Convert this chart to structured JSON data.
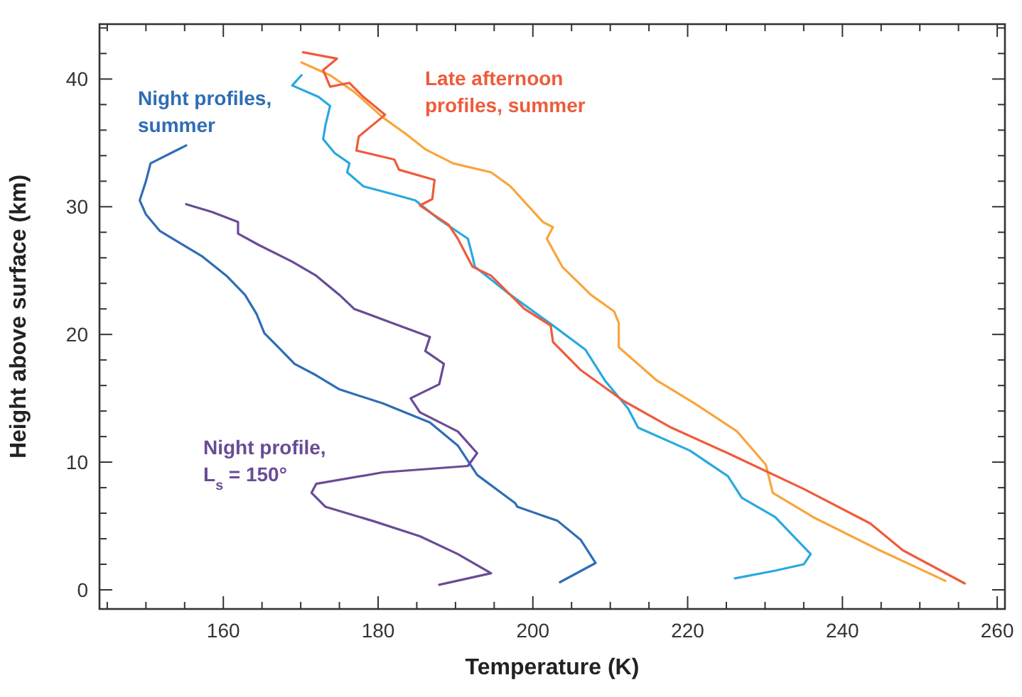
{
  "chart_data": {
    "type": "line",
    "xlabel": "Temperature (K)",
    "ylabel": "Height above surface (km)",
    "xlim": [
      144,
      261
    ],
    "ylim": [
      -1.5,
      44.3
    ],
    "xticks": [
      {
        "value": 145,
        "label": null
      },
      {
        "value": 150,
        "label": null
      },
      {
        "value": 155,
        "label": null
      },
      160,
      {
        "value": 165,
        "label": null
      },
      {
        "value": 170,
        "label": null
      },
      {
        "value": 175,
        "label": null
      },
      180,
      {
        "value": 185,
        "label": null
      },
      {
        "value": 190,
        "label": null
      },
      {
        "value": 195,
        "label": null
      },
      200,
      {
        "value": 205,
        "label": null
      },
      {
        "value": 210,
        "label": null
      },
      {
        "value": 215,
        "label": null
      },
      220,
      {
        "value": 225,
        "label": null
      },
      {
        "value": 230,
        "label": null
      },
      {
        "value": 235,
        "label": null
      },
      240,
      {
        "value": 245,
        "label": null
      },
      {
        "value": 250,
        "label": null
      },
      {
        "value": 255,
        "label": null
      },
      260
    ],
    "yticks": [
      0,
      {
        "value": 2,
        "label": null
      },
      {
        "value": 4,
        "label": null
      },
      {
        "value": 6,
        "label": null
      },
      {
        "value": 8,
        "label": null
      },
      10,
      {
        "value": 12,
        "label": null
      },
      {
        "value": 14,
        "label": null
      },
      {
        "value": 16,
        "label": null
      },
      {
        "value": 18,
        "label": null
      },
      20,
      {
        "value": 22,
        "label": null
      },
      {
        "value": 24,
        "label": null
      },
      {
        "value": 26,
        "label": null
      },
      {
        "value": 28,
        "label": null
      },
      30,
      {
        "value": 32,
        "label": null
      },
      {
        "value": 34,
        "label": null
      },
      {
        "value": 36,
        "label": null
      },
      {
        "value": 38,
        "label": null
      },
      40,
      {
        "value": 42,
        "label": null
      },
      {
        "value": 44,
        "label": null
      }
    ],
    "grid": false,
    "marker": "none",
    "line_style": "solid",
    "series": [
      {
        "name": "Night profiles, summer",
        "color": "#2f6db5",
        "x": [
          155.2,
          150.6,
          150.0,
          149.2,
          150.0,
          151.8,
          157.3,
          160.4,
          162.8,
          164.3,
          165.3,
          167.1,
          169.2,
          172.0,
          175.0,
          180.6,
          186.7,
          190.3,
          192.8,
          197.7,
          198.0,
          203.2,
          206.2,
          208.1,
          203.5
        ],
        "values": [
          34.8,
          33.4,
          32.0,
          30.5,
          29.4,
          28.1,
          26.1,
          24.6,
          23.1,
          21.6,
          20.1,
          19.0,
          17.7,
          16.8,
          15.7,
          14.6,
          13.1,
          11.3,
          9.0,
          6.8,
          6.5,
          5.4,
          3.9,
          2.1,
          0.6
        ]
      },
      {
        "color": "#29a9e1",
        "x": [
          170.1,
          168.9,
          172.3,
          173.8,
          173.2,
          172.9,
          174.4,
          176.3,
          176.0,
          178.1,
          181.8,
          184.8,
          187.9,
          191.6,
          192.2,
          192.5,
          197.1,
          202.6,
          206.8,
          209.3,
          212.3,
          213.6,
          220.3,
          225.2,
          227.0,
          231.3,
          235.9,
          235.0,
          231.3,
          226.1
        ],
        "values": [
          40.3,
          39.5,
          38.6,
          37.9,
          36.4,
          35.3,
          34.2,
          33.4,
          32.7,
          31.6,
          31.0,
          30.5,
          29.0,
          27.5,
          26.1,
          25.3,
          23.1,
          20.7,
          18.8,
          16.4,
          14.2,
          12.7,
          10.9,
          8.9,
          7.2,
          5.7,
          2.8,
          2.0,
          1.5,
          0.9
        ]
      },
      {
        "color": "#f9a53b",
        "x": [
          170.1,
          173.8,
          176.9,
          180.6,
          183.6,
          186.1,
          189.7,
          194.6,
          197.1,
          201.3,
          202.6,
          201.8,
          203.8,
          207.5,
          210.5,
          211.1,
          211.1,
          216.0,
          220.9,
          226.4,
          230.1,
          231.0,
          236.2,
          244.8,
          253.3
        ],
        "values": [
          41.3,
          40.3,
          39.0,
          37.0,
          35.7,
          34.5,
          33.4,
          32.7,
          31.6,
          28.8,
          28.4,
          27.5,
          25.3,
          23.1,
          21.8,
          20.9,
          19.0,
          16.4,
          14.6,
          12.4,
          9.8,
          7.6,
          5.7,
          3.1,
          0.7
        ]
      },
      {
        "name": "Late afternoon profiles, summer",
        "color": "#ef5b3b",
        "x": [
          170.3,
          174.7,
          172.9,
          173.8,
          176.3,
          178.1,
          180.9,
          179.3,
          177.5,
          177.2,
          182.1,
          182.7,
          187.3,
          187.0,
          185.4,
          189.1,
          190.3,
          192.2,
          194.6,
          198.9,
          202.3,
          202.6,
          206.2,
          211.7,
          217.9,
          225.2,
          235.0,
          243.6,
          247.8,
          255.8
        ],
        "values": [
          42.1,
          41.6,
          40.7,
          39.4,
          39.7,
          38.6,
          37.2,
          36.4,
          35.5,
          34.4,
          33.7,
          32.9,
          32.1,
          30.6,
          30.1,
          28.6,
          27.5,
          25.3,
          24.6,
          22.0,
          20.7,
          19.4,
          17.2,
          14.8,
          12.7,
          10.7,
          7.9,
          5.2,
          3.1,
          0.5
        ]
      },
      {
        "name": "Night profile, L$_{s}$ = 150°",
        "color": "#6a4b96",
        "x": [
          155.2,
          158.5,
          161.9,
          161.9,
          164.6,
          168.9,
          172.0,
          175.0,
          176.9,
          181.8,
          186.7,
          186.1,
          188.5,
          187.9,
          184.2,
          185.4,
          190.3,
          192.8,
          191.6,
          180.6,
          172.0,
          171.4,
          173.2,
          179.3,
          185.4,
          190.3,
          194.6,
          187.9
        ],
        "values": [
          30.2,
          29.6,
          28.8,
          27.9,
          27.0,
          25.7,
          24.6,
          23.1,
          22.0,
          20.9,
          19.8,
          18.7,
          17.7,
          16.1,
          15.0,
          13.9,
          12.4,
          10.7,
          9.7,
          9.2,
          8.3,
          7.6,
          6.5,
          5.4,
          4.2,
          2.8,
          1.3,
          0.4
        ]
      }
    ]
  }
}
